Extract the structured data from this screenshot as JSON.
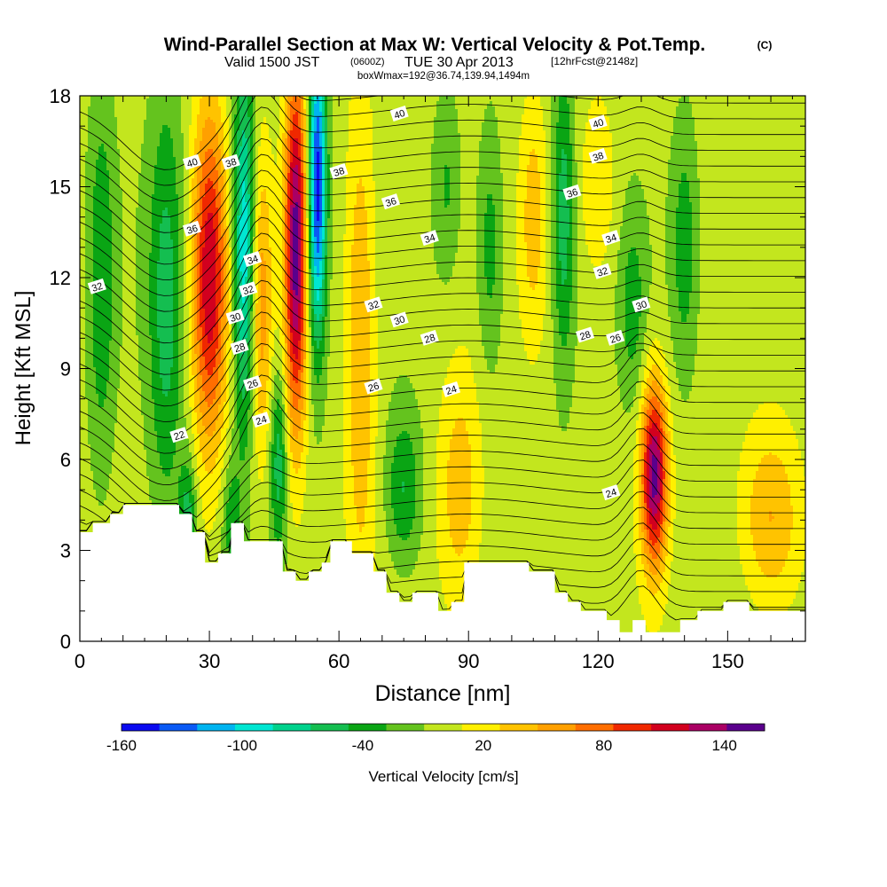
{
  "chart_data": {
    "type": "heatmap",
    "title": "Wind-Parallel Section at Max W: Vertical Velocity & Pot.Temp.",
    "title_mark": "(C)",
    "subtitle": {
      "valid_label": "Valid 1500 JST",
      "utc": "(0600Z)",
      "date": "TUE 30 Apr 2013",
      "forecast": "[12hrFcst@2148z]"
    },
    "info": "boxWmax=192@36.74,139.94,1494m",
    "xlabel": "Distance [nm]",
    "ylabel": "Height [Kft MSL]",
    "xlim": [
      0,
      168
    ],
    "ylim": [
      0,
      18
    ],
    "x_ticks": [
      "0",
      "30",
      "60",
      "90",
      "120",
      "150"
    ],
    "x_tick_values": [
      0,
      30,
      60,
      90,
      120,
      150
    ],
    "y_ticks": [
      "0",
      "3",
      "6",
      "9",
      "12",
      "15",
      "18"
    ],
    "y_tick_values": [
      0,
      3,
      6,
      9,
      12,
      15,
      18
    ],
    "colorbar": {
      "label": "Vertical Velocity [cm/s]",
      "tick_labels": [
        "-160",
        "-100",
        "-40",
        "20",
        "80",
        "140"
      ],
      "tick_values": [
        -160,
        -100,
        -40,
        20,
        80,
        140
      ],
      "levels": [
        -160,
        -140,
        -120,
        -100,
        -80,
        -60,
        -40,
        -20,
        0,
        20,
        40,
        60,
        80,
        100,
        120,
        140,
        160
      ],
      "colors": [
        "#0a0af0",
        "#0a5af5",
        "#00b4f0",
        "#00e6d2",
        "#00d28c",
        "#14be50",
        "#0aa514",
        "#64c31e",
        "#c3e61e",
        "#fff000",
        "#ffc300",
        "#ffa000",
        "#ff6e00",
        "#f02800",
        "#d2001e",
        "#aa0064",
        "#5a008c"
      ]
    },
    "terrain": {
      "color": "#ffffff",
      "x": [
        0,
        3,
        3,
        7,
        7,
        10,
        10,
        23,
        23,
        26,
        26,
        29,
        29,
        32,
        32,
        35,
        35,
        38,
        38,
        47,
        47,
        50,
        50,
        53,
        53,
        56,
        56,
        58,
        58,
        63,
        63,
        68,
        68,
        71,
        71,
        74,
        74,
        77,
        77,
        83,
        83,
        86,
        86,
        89,
        89,
        104,
        104,
        110,
        110,
        113,
        113,
        116,
        116,
        122,
        122,
        125,
        125,
        128,
        128,
        131,
        131,
        139,
        139,
        143,
        143,
        149,
        149,
        155,
        155,
        168
      ],
      "y": [
        3.6,
        3.6,
        3.9,
        3.9,
        4.2,
        4.2,
        4.5,
        4.5,
        4.2,
        4.2,
        3.6,
        3.6,
        2.6,
        2.6,
        2.9,
        2.9,
        3.9,
        3.9,
        3.3,
        3.3,
        2.3,
        2.3,
        2.0,
        2.0,
        2.3,
        2.3,
        2.6,
        2.6,
        3.3,
        3.3,
        2.9,
        2.9,
        2.3,
        2.3,
        1.6,
        1.6,
        1.3,
        1.3,
        1.6,
        1.6,
        1.0,
        1.0,
        1.3,
        1.3,
        2.6,
        2.6,
        2.3,
        2.3,
        1.6,
        1.6,
        1.3,
        1.3,
        1.0,
        1.0,
        0.7,
        0.7,
        0.3,
        0.3,
        0.7,
        0.7,
        0.3,
        0.3,
        0.7,
        0.7,
        1.0,
        1.0,
        1.3,
        1.3,
        1.0,
        1.0
      ]
    },
    "updrafts": [
      {
        "x": 30,
        "width": 4,
        "z_center": 12,
        "z_spread": 5.5,
        "value": 130
      },
      {
        "x": 50,
        "width": 2.5,
        "z_center": 13,
        "z_spread": 6,
        "value": 160
      },
      {
        "x": 42,
        "width": 2.5,
        "z_center": 11,
        "z_spread": 5,
        "value": 60
      },
      {
        "x": 65,
        "width": 3.5,
        "z_center": 10,
        "z_spread": 8,
        "value": 55
      },
      {
        "x": 88,
        "width": 5,
        "z_center": 5,
        "z_spread": 4,
        "value": 45
      },
      {
        "x": 105,
        "width": 3,
        "z_center": 14,
        "z_spread": 4,
        "value": 40
      },
      {
        "x": 133,
        "width": 3,
        "z_center": 5.5,
        "z_spread": 3,
        "value": 160
      },
      {
        "x": 160,
        "width": 7,
        "z_center": 4,
        "z_spread": 3,
        "value": 55
      },
      {
        "x": 120,
        "width": 4,
        "z_center": 15,
        "z_spread": 3,
        "value": 35
      }
    ],
    "downdrafts": [
      {
        "x": 38,
        "width": 2.5,
        "z_center": 13,
        "z_spread": 6,
        "value": -110
      },
      {
        "x": 55,
        "width": 2,
        "z_center": 15,
        "z_spread": 5,
        "value": -160
      },
      {
        "x": 20,
        "width": 4,
        "z_center": 11,
        "z_spread": 7,
        "value": -55
      },
      {
        "x": 5,
        "width": 3,
        "z_center": 12,
        "z_spread": 6,
        "value": -45
      },
      {
        "x": 46,
        "width": 2,
        "z_center": 6,
        "z_spread": 3,
        "value": -60
      },
      {
        "x": 75,
        "width": 4,
        "z_center": 5,
        "z_spread": 2.5,
        "value": -50
      },
      {
        "x": 112,
        "width": 2.5,
        "z_center": 14,
        "z_spread": 5,
        "value": -60
      },
      {
        "x": 95,
        "width": 3,
        "z_center": 13,
        "z_spread": 4,
        "value": -40
      },
      {
        "x": 140,
        "width": 3,
        "z_center": 13,
        "z_spread": 4,
        "value": -40
      },
      {
        "x": 128,
        "width": 3,
        "z_center": 11,
        "z_spread": 3,
        "value": -35
      },
      {
        "x": 25,
        "width": 2,
        "z_center": 4,
        "z_spread": 2,
        "value": -60
      },
      {
        "x": 35,
        "width": 2,
        "z_center": 4,
        "z_spread": 2,
        "value": -40
      },
      {
        "x": 85,
        "width": 3,
        "z_center": 15,
        "z_spread": 3,
        "value": -30
      }
    ],
    "isentropes": {
      "label_values": [
        "40",
        "38",
        "36",
        "34",
        "32",
        "30",
        "28",
        "26",
        "24",
        "22"
      ],
      "labels": [
        {
          "text": "40",
          "x": 26,
          "z": 15.8
        },
        {
          "text": "38",
          "x": 35,
          "z": 15.8
        },
        {
          "text": "36",
          "x": 26,
          "z": 13.6
        },
        {
          "text": "34",
          "x": 40,
          "z": 12.6
        },
        {
          "text": "32",
          "x": 39,
          "z": 11.6
        },
        {
          "text": "32",
          "x": 4,
          "z": 11.7
        },
        {
          "text": "30",
          "x": 36,
          "z": 10.7
        },
        {
          "text": "28",
          "x": 37,
          "z": 9.7
        },
        {
          "text": "26",
          "x": 40,
          "z": 8.5
        },
        {
          "text": "24",
          "x": 42,
          "z": 7.3
        },
        {
          "text": "22",
          "x": 23,
          "z": 6.8
        },
        {
          "text": "40",
          "x": 74,
          "z": 17.4
        },
        {
          "text": "38",
          "x": 60,
          "z": 15.5
        },
        {
          "text": "36",
          "x": 72,
          "z": 14.5
        },
        {
          "text": "34",
          "x": 81,
          "z": 13.3
        },
        {
          "text": "32",
          "x": 68,
          "z": 11.1
        },
        {
          "text": "30",
          "x": 74,
          "z": 10.6
        },
        {
          "text": "28",
          "x": 81,
          "z": 10.0
        },
        {
          "text": "26",
          "x": 68,
          "z": 8.4
        },
        {
          "text": "24",
          "x": 86,
          "z": 8.3
        },
        {
          "text": "40",
          "x": 120,
          "z": 17.1
        },
        {
          "text": "38",
          "x": 120,
          "z": 16.0
        },
        {
          "text": "36",
          "x": 114,
          "z": 14.8
        },
        {
          "text": "34",
          "x": 123,
          "z": 13.3
        },
        {
          "text": "32",
          "x": 121,
          "z": 12.2
        },
        {
          "text": "30",
          "x": 130,
          "z": 11.1
        },
        {
          "text": "28",
          "x": 117,
          "z": 10.1
        },
        {
          "text": "26",
          "x": 124,
          "z": 10.0
        },
        {
          "text": "24",
          "x": 123,
          "z": 4.9
        }
      ]
    }
  }
}
